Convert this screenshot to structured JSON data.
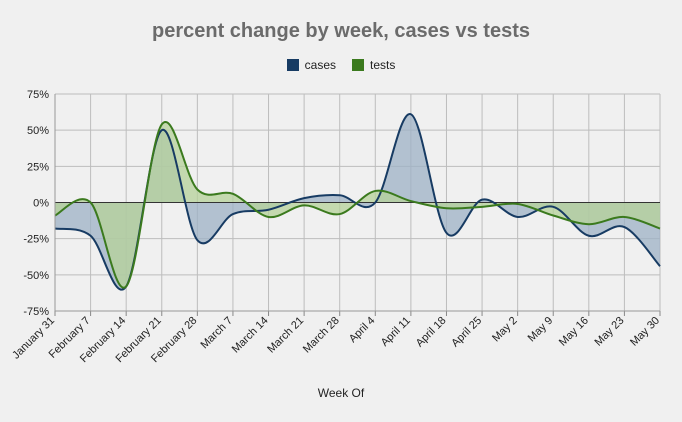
{
  "chart_data": {
    "type": "line",
    "title": "percent change by week, cases vs tests",
    "xlabel": "Week Of",
    "ylabel": "",
    "ylim": [
      -75,
      75
    ],
    "yticks": [
      75,
      50,
      25,
      0,
      -25,
      -50,
      -75
    ],
    "ytick_labels": [
      "75%",
      "50%",
      "25%",
      "0%",
      "-25%",
      "-50%",
      "-75%"
    ],
    "categories": [
      "January 31",
      "February 7",
      "February 14",
      "February 21",
      "February 28",
      "March 7",
      "March 14",
      "March 21",
      "March 28",
      "April 4",
      "April 11",
      "April 18",
      "April 25",
      "May 2",
      "May 9",
      "May 16",
      "May 23",
      "May 30"
    ],
    "series": [
      {
        "name": "cases",
        "color": "#173b63",
        "fill": "#9db1c6",
        "values": [
          -18,
          -23,
          -58,
          50,
          -26,
          -8,
          -5,
          3,
          5,
          0,
          61,
          -21,
          2,
          -10,
          -3,
          -23,
          -17,
          -44
        ]
      },
      {
        "name": "tests",
        "color": "#3b7a1e",
        "fill": "#b5d19a",
        "values": [
          -9,
          0,
          -58,
          54,
          9,
          6,
          -10,
          -2,
          -8,
          8,
          1,
          -4,
          -3,
          -1,
          -9,
          -15,
          -10,
          -18
        ]
      }
    ],
    "grid": true,
    "legend": "top-center"
  }
}
